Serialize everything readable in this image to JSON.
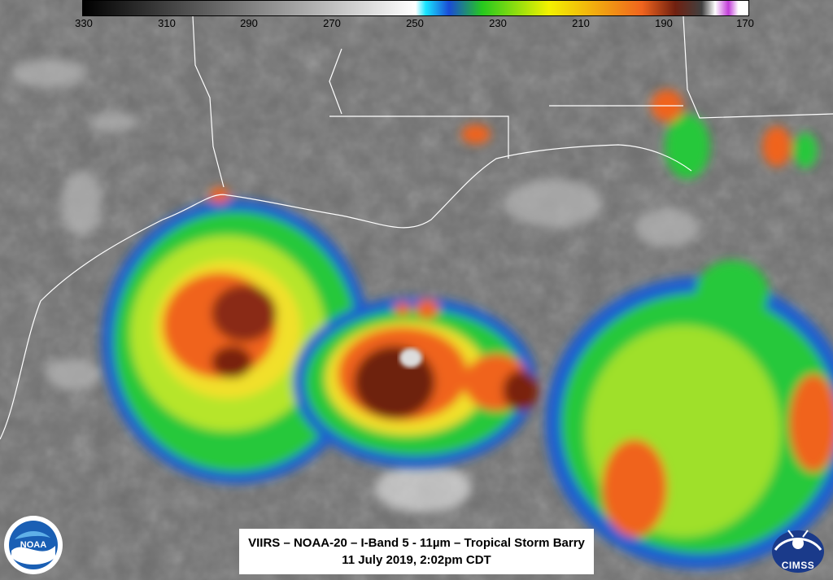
{
  "colorbar": {
    "ticks": [
      "330",
      "310",
      "290",
      "270",
      "250",
      "230",
      "210",
      "190",
      "170"
    ],
    "stops": [
      "#000000",
      "#ffffff",
      "#19e6ff",
      "#1a4bd6",
      "#26c81e",
      "#f3f200",
      "#f0641e",
      "#702010",
      "#404040",
      "#ffffff",
      "#c23cd8",
      "#ffffff"
    ]
  },
  "caption": {
    "line1": "VIIRS – NOAA-20 – I-Band 5 - 11µm – Tropical Storm Barry",
    "line2": "11 July 2019, 2:02pm CDT"
  },
  "logos": {
    "noaa": "NOAA",
    "cimss": "CIMSS"
  }
}
